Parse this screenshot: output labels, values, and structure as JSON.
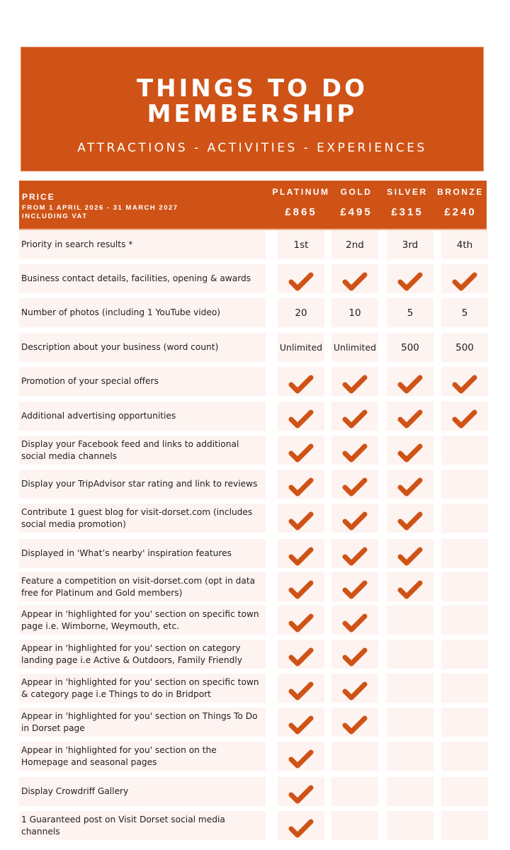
{
  "banner": {
    "title_line1": "THINGS TO DO",
    "title_line2": "MEMBERSHIP",
    "subtitle": "ATTRACTIONS - ACTIVITIES - EXPERIENCES"
  },
  "header": {
    "price_label": "PRICE",
    "price_period": "FROM 1 APRIL 2026 - 31 MARCH 2027",
    "price_vat": "INCLUDING VAT",
    "tiers": [
      {
        "name": "PLATINUM",
        "price": "£865"
      },
      {
        "name": "GOLD",
        "price": "£495"
      },
      {
        "name": "SILVER",
        "price": "£315"
      },
      {
        "name": "BRONZE",
        "price": "£240"
      }
    ]
  },
  "colors": {
    "accent": "#cf5316",
    "cell_bg": "#fdf3f0",
    "check": "#cf5316"
  },
  "rows": [
    {
      "feature": "Priority in search results *",
      "values": [
        "1st",
        "2nd",
        "3rd",
        "4th"
      ]
    },
    {
      "feature": "Business contact details, facilities, opening & awards",
      "values": [
        "check",
        "check",
        "check",
        "check"
      ]
    },
    {
      "feature": "Number of photos (including 1 YouTube video)",
      "values": [
        "20",
        "10",
        "5",
        "5"
      ]
    },
    {
      "feature": "Description about your business (word count)",
      "values": [
        "Unlimited",
        "Unlimited",
        "500",
        "500"
      ]
    },
    {
      "feature": "Promotion of your special offers",
      "values": [
        "check",
        "check",
        "check",
        "check"
      ]
    },
    {
      "feature": "Additional advertising opportunities",
      "values": [
        "check",
        "check",
        "check",
        "check"
      ]
    },
    {
      "feature": "Display your Facebook feed and links to additional social media channels",
      "values": [
        "check",
        "check",
        "check",
        ""
      ]
    },
    {
      "feature": "Display your TripAdvisor star rating and link to reviews",
      "values": [
        "check",
        "check",
        "check",
        ""
      ]
    },
    {
      "feature": "Contribute 1 guest blog for visit-dorset.com (includes social media promotion)",
      "values": [
        "check",
        "check",
        "check",
        ""
      ]
    },
    {
      "feature": "Displayed in 'What’s nearby' inspiration features",
      "values": [
        "check",
        "check",
        "check",
        ""
      ]
    },
    {
      "feature": "Feature a competition on visit-dorset.com (opt in data free for Platinum and Gold members)",
      "values": [
        "check",
        "check",
        "check",
        ""
      ]
    },
    {
      "feature": "Appear in 'highlighted for you' section on specific town page i.e. Wimborne, Weymouth, etc.",
      "values": [
        "check",
        "check",
        "",
        ""
      ]
    },
    {
      "feature": "Appear in 'highlighted for you' section on category landing page i.e Active & Outdoors, Family Friendly",
      "values": [
        "check",
        "check",
        "",
        ""
      ]
    },
    {
      "feature": "Appear in 'highlighted for you' section on specific town & category page i.e Things to do in Bridport",
      "values": [
        "check",
        "check",
        "",
        ""
      ]
    },
    {
      "feature": "Appear in 'highlighted for you' section on Things To Do in Dorset page",
      "values": [
        "check",
        "check",
        "",
        ""
      ]
    },
    {
      "feature": "Appear in 'highlighted for you' section on the Homepage and seasonal pages",
      "values": [
        "check",
        "",
        "",
        ""
      ]
    },
    {
      "feature": "Display Crowdriff Gallery",
      "values": [
        "check",
        "",
        "",
        ""
      ]
    },
    {
      "feature": "1 Guaranteed post on Visit Dorset social media channels",
      "values": [
        "check",
        "",
        "",
        ""
      ]
    }
  ]
}
